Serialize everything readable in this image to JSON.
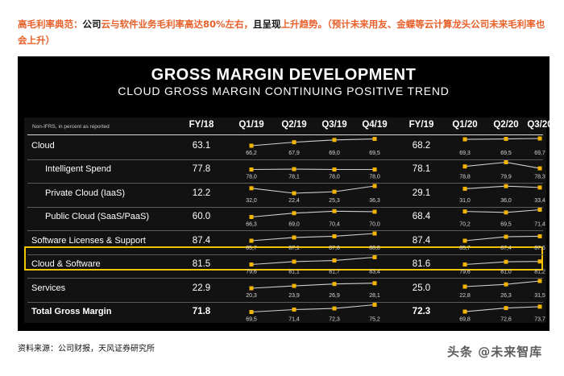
{
  "caption": {
    "part1": "高毛利率典范：",
    "part2": "公司",
    "part3": "云与软件业务毛利率高达80%左右，",
    "part4": "且呈现",
    "part5": "上升趋势。（预计未来用友、金蝶等云计算龙头公司未来毛利率也会上升）"
  },
  "slide": {
    "title": "GROSS MARGIN DEVELOPMENT",
    "subtitle": "CLOUD GROSS MARGIN CONTINUING POSITIVE TREND",
    "note": "Non-IFRS, in percent as reported"
  },
  "chart_data": {
    "type": "table",
    "columns": [
      "FY/18",
      "Q1/19",
      "Q2/19",
      "Q3/19",
      "Q4/19",
      "FY/19",
      "Q1/20",
      "Q2/20",
      "Q3/20"
    ],
    "rows": [
      {
        "label": "Cloud",
        "fy18": "63.1",
        "q19": [
          "66,2",
          "67,9",
          "69,0",
          "69,5"
        ],
        "fy19": "68.2",
        "q20": [
          "69,3",
          "69,5",
          "69,7"
        ],
        "v19": [
          66.2,
          67.9,
          69.0,
          69.5
        ],
        "v20": [
          69.3,
          69.5,
          69.7
        ],
        "bold": false,
        "indent": false
      },
      {
        "label": "Intelligent Spend",
        "fy18": "77.8",
        "q19": [
          "78,0",
          "78,1",
          "78,0",
          "78,0"
        ],
        "fy19": "78.1",
        "q20": [
          "78,8",
          "79,9",
          "78,3"
        ],
        "v19": [
          78.0,
          78.1,
          78.0,
          78.0
        ],
        "v20": [
          78.8,
          79.9,
          78.3
        ],
        "bold": false,
        "indent": true
      },
      {
        "label": "Private Cloud (IaaS)",
        "fy18": "12.2",
        "q19": [
          "32,0",
          "22,4",
          "25,3",
          "36,3"
        ],
        "fy19": "29.1",
        "q20": [
          "31,0",
          "36,0",
          "33,4"
        ],
        "v19": [
          32.0,
          22.4,
          25.3,
          36.3
        ],
        "v20": [
          31.0,
          36.0,
          33.4
        ],
        "bold": false,
        "indent": true
      },
      {
        "label": "Public Cloud (SaaS/PaaS)",
        "fy18": "60.0",
        "q19": [
          "66,3",
          "69,0",
          "70,4",
          "70,0"
        ],
        "fy19": "68.4",
        "q20": [
          "70,2",
          "69,5",
          "71,4"
        ],
        "v19": [
          66.3,
          69.0,
          70.4,
          70.0
        ],
        "v20": [
          70.2,
          69.5,
          71.4
        ],
        "bold": false,
        "indent": true
      },
      {
        "label": "Software Licenses & Support",
        "fy18": "87.4",
        "q19": [
          "85,7",
          "87,1",
          "87,6",
          "88,8"
        ],
        "fy19": "87.4",
        "q20": [
          "85,7",
          "87,4",
          "87,6"
        ],
        "v19": [
          85.7,
          87.1,
          87.6,
          88.8
        ],
        "v20": [
          85.7,
          87.4,
          87.6
        ],
        "bold": false,
        "indent": false
      },
      {
        "label": "Cloud & Software",
        "fy18": "81.5",
        "q19": [
          "79,6",
          "81,1",
          "81,7",
          "83,4"
        ],
        "fy19": "81.6",
        "q20": [
          "79,6",
          "81,0",
          "81,2"
        ],
        "v19": [
          79.6,
          81.1,
          81.7,
          83.4
        ],
        "v20": [
          79.6,
          81.0,
          81.2
        ],
        "bold": false,
        "indent": false
      },
      {
        "label": "Services",
        "fy18": "22.9",
        "q19": [
          "20,3",
          "23,9",
          "26,9",
          "28,1"
        ],
        "fy19": "25.0",
        "q20": [
          "22,8",
          "26,3",
          "31,5"
        ],
        "v19": [
          20.3,
          23.9,
          26.9,
          28.1
        ],
        "v20": [
          22.8,
          26.3,
          31.5
        ],
        "bold": false,
        "indent": false
      },
      {
        "label": "Total Gross Margin",
        "fy18": "71.8",
        "q19": [
          "69,5",
          "71,4",
          "72,3",
          "75,2"
        ],
        "fy19": "72.3",
        "q20": [
          "69,8",
          "72,6",
          "73,7"
        ],
        "v19": [
          69.5,
          71.4,
          72.3,
          75.2
        ],
        "v20": [
          69.8,
          72.6,
          73.7
        ],
        "bold": true,
        "indent": false
      }
    ]
  },
  "source": "资料来源：公司财报，天风证券研究所",
  "watermark": "头条 @未来智库",
  "colors": {
    "accent": "#e8602a",
    "marker": "#f5b400",
    "highlight": "#f2c200",
    "background": "#000000"
  }
}
